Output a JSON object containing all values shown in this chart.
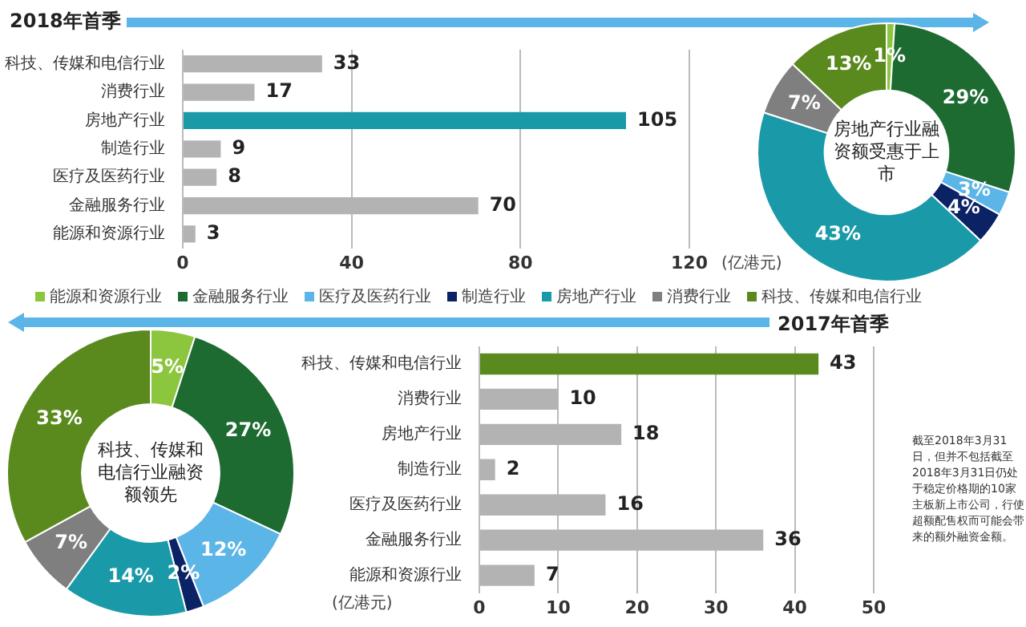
{
  "chart_data": [
    {
      "type": "bar",
      "orientation": "horizontal",
      "title": "2018年首季",
      "xlabel": "(亿港元)",
      "categories": [
        "科技、传媒和电信行业",
        "消费行业",
        "房地产行业",
        "制造行业",
        "医疗及医药行业",
        "金融服务行业",
        "能源和资源行业"
      ],
      "values": [
        33,
        17,
        105,
        9,
        8,
        70,
        3
      ],
      "colors": [
        "#b3b3b3",
        "#b3b3b3",
        "#1a9aa8",
        "#b3b3b3",
        "#b3b3b3",
        "#b3b3b3",
        "#b3b3b3"
      ],
      "xlim": [
        0,
        120
      ],
      "xticks": [
        0,
        40,
        80,
        120
      ],
      "grid": "x",
      "data_labels": true
    },
    {
      "type": "donut",
      "categories": [
        "能源和资源行业",
        "金融服务行业",
        "医疗及医药行业",
        "制造行业",
        "房地产行业",
        "消费行业",
        "科技、传媒和电信行业"
      ],
      "values": [
        1,
        29,
        3,
        4,
        43,
        7,
        13
      ],
      "value_labels": [
        "1%",
        "29%",
        "3%",
        "4%",
        "43%",
        "7%",
        "13%"
      ],
      "colors": [
        "#8cc63f",
        "#1e6b32",
        "#5bb5e6",
        "#0b2265",
        "#1a9aa8",
        "#7f7f7f",
        "#5a8a1e"
      ],
      "annotations": [
        "房地产行业融资额受惠于上市"
      ],
      "legend": "bottom"
    },
    {
      "type": "donut",
      "categories": [
        null,
        null,
        null,
        null,
        null,
        null,
        null
      ],
      "values": [
        5,
        27,
        12,
        2,
        14,
        7,
        33
      ],
      "value_labels": [
        "5%",
        "27%",
        "12%",
        "2%",
        "14%",
        "7%",
        "33%"
      ],
      "colors": [
        "#8cc63f",
        "#1e6b32",
        "#5bb5e6",
        "#0b2265",
        "#1a9aa8",
        "#7f7f7f",
        "#5a8a1e"
      ],
      "annotations": [
        "科技、传媒和电信行业融资额领先"
      ]
    },
    {
      "type": "bar",
      "orientation": "horizontal",
      "title": "2017年首季",
      "xlabel": "(亿港元)",
      "categories": [
        "科技、传媒和电信行业",
        "消费行业",
        "房地产行业",
        "制造行业",
        "医疗及医药行业",
        "金融服务行业",
        "能源和资源行业"
      ],
      "values": [
        43,
        10,
        18,
        2,
        16,
        36,
        7
      ],
      "colors": [
        "#5a8a1e",
        "#b3b3b3",
        "#b3b3b3",
        "#b3b3b3",
        "#b3b3b3",
        "#b3b3b3",
        "#b3b3b3"
      ],
      "xlim": [
        0,
        50
      ],
      "xticks": [
        0,
        10,
        20,
        30,
        40,
        50
      ],
      "grid": "x",
      "data_labels": true,
      "annotations": [
        "截至2018年3月31日，但并不包括截至2018年3月31日仍处于稳定价格期的10家主板新上市公司，行使超额配售权而可能会带来的额外融资金额。"
      ]
    }
  ]
}
